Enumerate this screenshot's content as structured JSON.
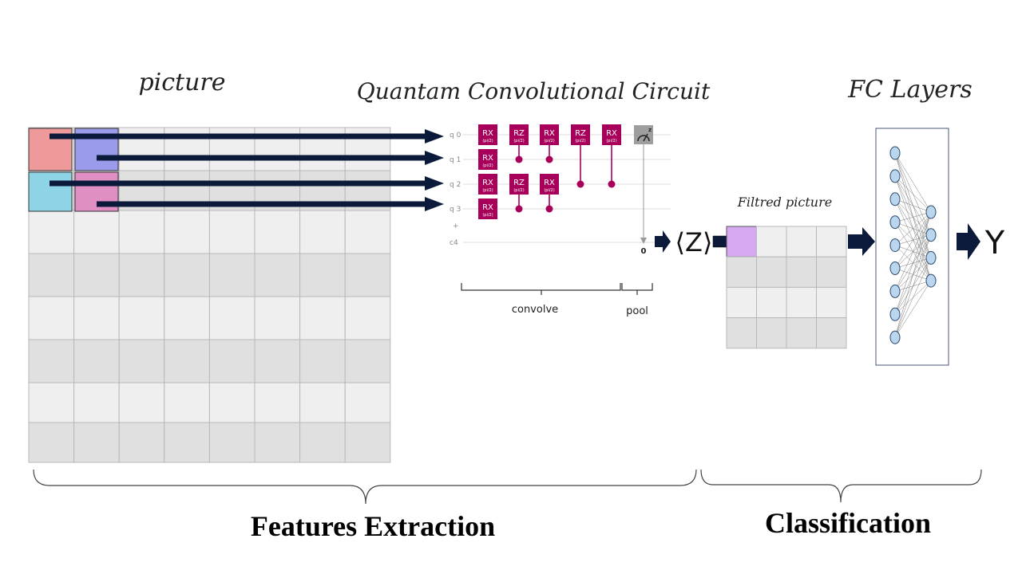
{
  "titles": {
    "picture": "picture",
    "circuit": "Quantam Convolutional Circuit",
    "fc": "FC Layers",
    "filtred": "Filtred picture"
  },
  "circuit": {
    "qubits": [
      "q 0",
      "q 1",
      "q 2",
      "q 3"
    ],
    "plus": "+",
    "classical": "c4",
    "measure_out": "0",
    "gate_param": "(pi/2)",
    "gates": [
      {
        "label": "RX",
        "qubit": 0,
        "col": 0
      },
      {
        "label": "RX",
        "qubit": 1,
        "col": 0
      },
      {
        "label": "RX",
        "qubit": 2,
        "col": 0
      },
      {
        "label": "RX",
        "qubit": 3,
        "col": 0
      },
      {
        "label": "RZ",
        "qubit": 0,
        "col": 1
      },
      {
        "label": "RZ",
        "qubit": 2,
        "col": 1
      },
      {
        "label": "RX",
        "qubit": 0,
        "col": 2
      },
      {
        "label": "RX",
        "qubit": 2,
        "col": 2
      },
      {
        "label": "RZ",
        "qubit": 0,
        "col": 3
      },
      {
        "label": "RX",
        "qubit": 0,
        "col": 4
      }
    ],
    "controls": [
      {
        "col": 1,
        "from": 0,
        "to": 1
      },
      {
        "col": 1,
        "from": 2,
        "to": 3
      },
      {
        "col": 2,
        "from": 0,
        "to": 1
      },
      {
        "col": 2,
        "from": 2,
        "to": 3
      },
      {
        "col": 3,
        "from": 0,
        "to": 2
      },
      {
        "col": 4,
        "from": 0,
        "to": 2
      }
    ]
  },
  "braces": {
    "convolve": "convolve",
    "pool": "pool",
    "features": "Features Extraction",
    "classification": "Classification"
  },
  "expectation": "⟨Z⟩",
  "output": "Y",
  "network": {
    "input_nodes": 9,
    "hidden_nodes": 4
  },
  "colors": {
    "patch_red": "#ee9a9a",
    "patch_blue": "#9b9bec",
    "patch_cyan": "#8fd3e6",
    "patch_pink": "#e08fc4",
    "filtered_cell": "#d7a8f2",
    "arrow": "#0b1a3a",
    "gate": "#a8005a",
    "node": "#b9d6ee"
  }
}
